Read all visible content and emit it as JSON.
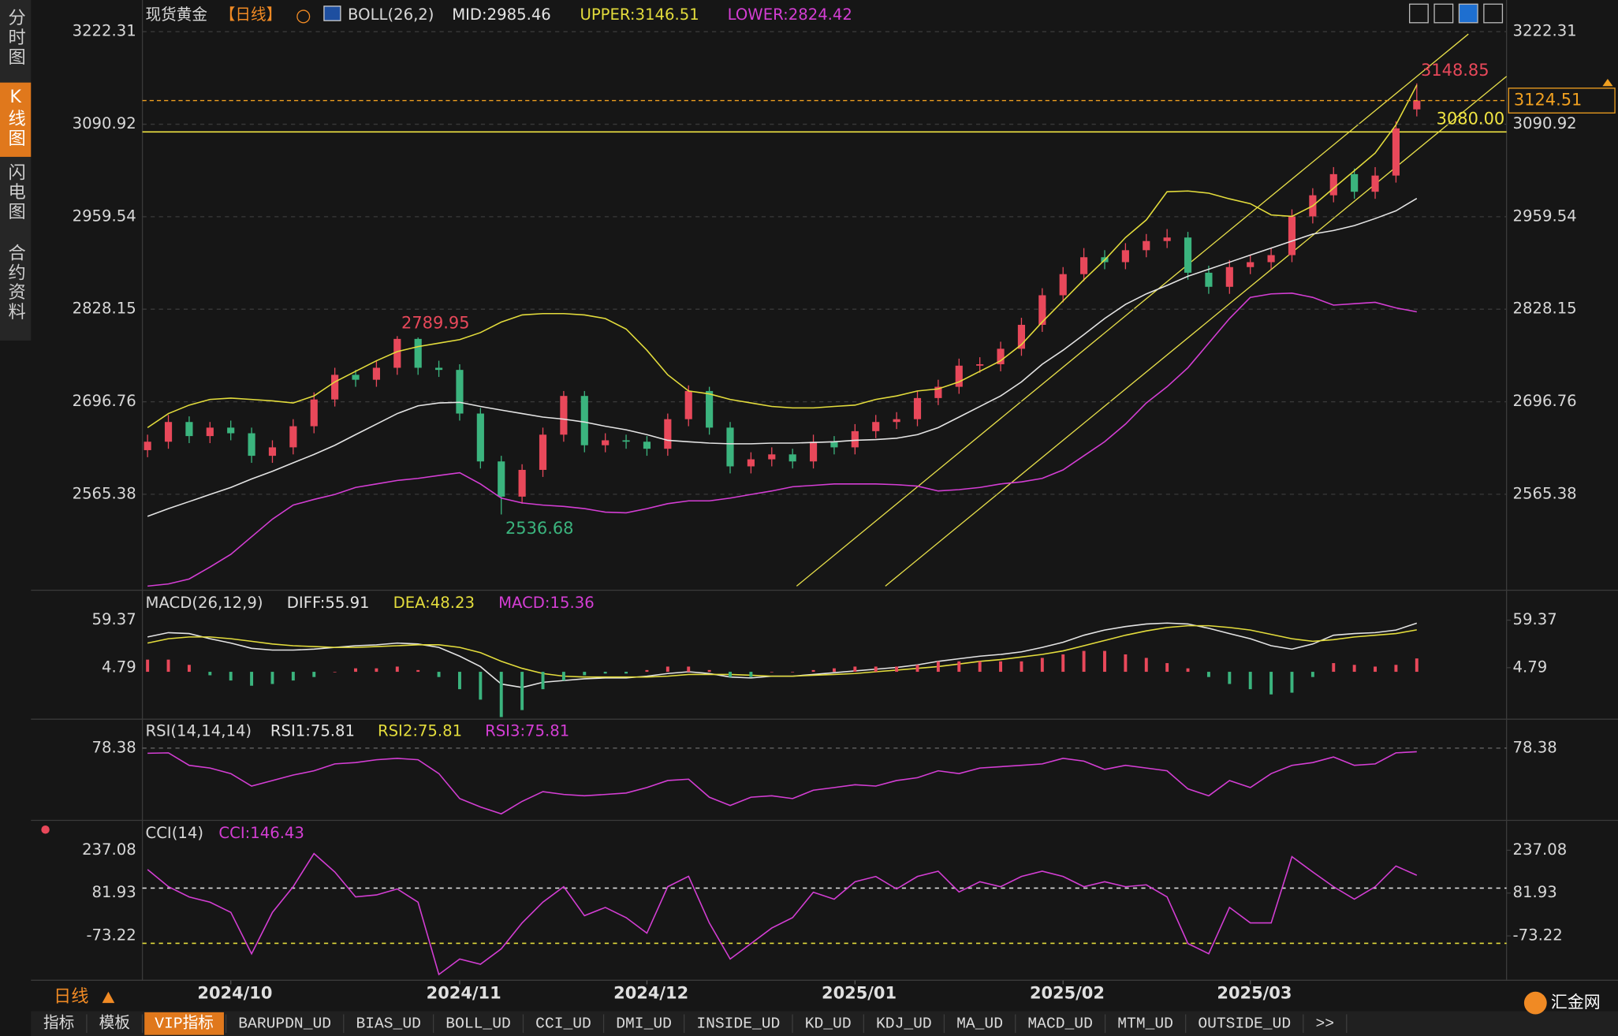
{
  "sidebar": {
    "tabs": [
      "分时图",
      "K线图",
      "闪电图",
      "合约资料"
    ]
  },
  "toolbar": {
    "period": "日线",
    "tabs": [
      "指标",
      "模板",
      "VIP指标",
      "BARUPDN_UD",
      "BIAS_UD",
      "BOLL_UD",
      "CCI_UD",
      "DMI_UD",
      "INSIDE_UD",
      "KD_UD",
      "KDJ_UD",
      "MA_UD",
      "MACD_UD",
      "MTM_UD",
      "OUTSIDE_UD",
      ">>"
    ]
  },
  "logo": "汇金网",
  "chart_data": [
    {
      "type": "candlestick",
      "title": "现货黄金",
      "period": "【日线】",
      "indicator": "BOLL(26,2)",
      "categories": [
        null,
        null,
        null,
        null,
        null,
        null,
        null,
        null,
        null,
        null,
        null,
        null,
        null,
        null,
        null,
        null,
        null,
        null,
        null,
        null,
        null,
        null,
        null,
        null,
        null,
        null,
        null,
        null,
        null,
        null,
        null,
        null,
        null,
        null,
        null,
        null,
        null,
        null,
        null,
        null,
        null,
        null,
        null,
        null,
        null,
        null,
        null,
        null,
        null,
        null,
        null,
        null,
        null,
        null,
        null,
        null,
        null,
        null,
        null,
        null,
        null,
        null
      ],
      "xticks": [
        {
          "value": 4,
          "label": "2024/10"
        },
        {
          "value": 15,
          "label": "2024/11"
        },
        {
          "value": 24,
          "label": "2024/12"
        },
        {
          "value": 34,
          "label": "2025/01"
        },
        {
          "value": 44,
          "label": "2025/02"
        },
        {
          "value": 53,
          "label": "2025/03"
        }
      ],
      "open": [
        2628,
        2640,
        2668,
        2648,
        2660,
        2652,
        2620,
        2632,
        2662,
        2700,
        2735,
        2728,
        2745,
        2786,
        2745,
        2742,
        2680,
        2612,
        2562,
        2600,
        2650,
        2705,
        2635,
        2642,
        2640,
        2630,
        2672,
        2712,
        2660,
        2605,
        2615,
        2622,
        2612,
        2640,
        2632,
        2655,
        2668,
        2672,
        2702,
        2718,
        2748,
        2750,
        2772,
        2806,
        2848,
        2878,
        2902,
        2895,
        2912,
        2925,
        2930,
        2880,
        2860,
        2888,
        2895,
        2905,
        2960,
        2990,
        3020,
        2995,
        3018,
        3112
      ],
      "high": [
        2650,
        2678,
        2676,
        2668,
        2670,
        2660,
        2642,
        2672,
        2710,
        2745,
        2742,
        2755,
        2789.95,
        2788,
        2755,
        2750,
        2688,
        2620,
        2608,
        2660,
        2712,
        2712,
        2652,
        2650,
        2648,
        2680,
        2720,
        2718,
        2668,
        2625,
        2632,
        2630,
        2650,
        2648,
        2665,
        2678,
        2682,
        2712,
        2728,
        2758,
        2760,
        2782,
        2816,
        2858,
        2888,
        2915,
        2912,
        2922,
        2935,
        2942,
        2938,
        2890,
        2898,
        2905,
        2915,
        2970,
        3000,
        3030,
        3028,
        3030,
        3095,
        3148.85
      ],
      "low": [
        2618,
        2630,
        2638,
        2638,
        2642,
        2610,
        2610,
        2622,
        2652,
        2690,
        2718,
        2718,
        2735,
        2735,
        2732,
        2670,
        2602,
        2536.68,
        2552,
        2590,
        2640,
        2625,
        2625,
        2630,
        2620,
        2620,
        2662,
        2650,
        2595,
        2595,
        2605,
        2602,
        2602,
        2622,
        2622,
        2645,
        2658,
        2662,
        2692,
        2708,
        2738,
        2740,
        2762,
        2796,
        2838,
        2868,
        2885,
        2885,
        2902,
        2915,
        2870,
        2850,
        2850,
        2878,
        2885,
        2895,
        2950,
        2980,
        2985,
        2985,
        3008,
        3102
      ],
      "close": [
        2640,
        2668,
        2648,
        2660,
        2652,
        2620,
        2632,
        2662,
        2700,
        2735,
        2728,
        2745,
        2786,
        2745,
        2742,
        2680,
        2612,
        2562,
        2600,
        2650,
        2705,
        2635,
        2642,
        2640,
        2630,
        2672,
        2712,
        2660,
        2605,
        2615,
        2622,
        2612,
        2640,
        2632,
        2655,
        2668,
        2672,
        2702,
        2718,
        2748,
        2750,
        2772,
        2806,
        2848,
        2878,
        2902,
        2895,
        2912,
        2925,
        2930,
        2880,
        2860,
        2888,
        2895,
        2905,
        2960,
        2990,
        3020,
        2995,
        3018,
        3085,
        3124.51
      ],
      "up_color": "#e8485a",
      "down_color": "#3bb47e",
      "last_price_color": "#f0a020",
      "series": [
        {
          "name": "MID:2985.46",
          "color": "#e4e4e4",
          "values": [
            2534,
            2545,
            2555,
            2565,
            2575,
            2587,
            2598,
            2610,
            2622,
            2635,
            2650,
            2665,
            2680,
            2691,
            2695,
            2696,
            2690,
            2685,
            2680,
            2675,
            2672,
            2668,
            2662,
            2657,
            2650,
            2642,
            2640,
            2638,
            2637,
            2637,
            2638,
            2638,
            2639,
            2640,
            2642,
            2643,
            2645,
            2650,
            2660,
            2675,
            2690,
            2705,
            2725,
            2750,
            2770,
            2792,
            2815,
            2835,
            2850,
            2862,
            2875,
            2885,
            2895,
            2905,
            2915,
            2925,
            2935,
            2940,
            2947,
            2957,
            2968,
            2985.46
          ]
        },
        {
          "name": "UPPER:3146.51",
          "color": "#e3dc3c",
          "values": [
            2660,
            2680,
            2692,
            2700,
            2702,
            2700,
            2698,
            2695,
            2705,
            2725,
            2740,
            2755,
            2768,
            2775,
            2780,
            2785,
            2795,
            2810,
            2820,
            2822,
            2822,
            2820,
            2815,
            2800,
            2770,
            2735,
            2712,
            2708,
            2700,
            2695,
            2690,
            2688,
            2688,
            2690,
            2692,
            2700,
            2705,
            2712,
            2715,
            2725,
            2740,
            2755,
            2778,
            2810,
            2840,
            2870,
            2898,
            2930,
            2955,
            2995,
            2996,
            2993,
            2985,
            2978,
            2962,
            2960,
            2975,
            3000,
            3025,
            3050,
            3090,
            3146.51
          ]
        },
        {
          "name": "LOWER:2824.42",
          "color": "#d43ed4",
          "values": [
            2435,
            2438,
            2445,
            2462,
            2480,
            2505,
            2530,
            2550,
            2558,
            2565,
            2575,
            2580,
            2585,
            2588,
            2592,
            2596,
            2580,
            2560,
            2553,
            2550,
            2548,
            2545,
            2540,
            2539,
            2545,
            2552,
            2556,
            2556,
            2560,
            2565,
            2570,
            2576,
            2578,
            2580,
            2580,
            2580,
            2579,
            2577,
            2570,
            2572,
            2575,
            2580,
            2583,
            2588,
            2600,
            2620,
            2640,
            2665,
            2695,
            2718,
            2745,
            2780,
            2815,
            2845,
            2850,
            2851,
            2845,
            2834,
            2836,
            2838,
            2830,
            2824.42
          ]
        }
      ],
      "hlines": [
        {
          "value": 3080,
          "label": "3080.00",
          "color": "#f0e442",
          "dash": false
        }
      ],
      "ylim": [
        2432,
        3260
      ],
      "yticks": [
        3222.31,
        3090.92,
        2959.54,
        2828.15,
        2696.76,
        2565.38
      ],
      "grid": true,
      "grid_color": "#3a3a3a"
    },
    {
      "type": "macd",
      "title": "MACD(26,12,9)",
      "series": [
        {
          "name": "DIFF:55.91",
          "color": "#e4e4e4",
          "values": [
            40,
            45,
            44,
            38,
            33,
            27,
            25,
            25,
            26,
            28,
            30,
            31,
            33,
            32,
            28,
            18,
            6,
            -14,
            -18,
            -12,
            -10,
            -8,
            -7,
            -7,
            -5,
            -2,
            0,
            -2,
            -6,
            -7,
            -5,
            -5,
            -3,
            -1,
            1,
            3,
            5,
            8,
            12,
            15,
            18,
            20,
            23,
            28,
            34,
            42,
            48,
            52,
            55,
            56,
            55,
            50,
            44,
            38,
            30,
            26,
            32,
            42,
            44,
            45,
            48,
            55.91
          ]
        },
        {
          "name": "DEA:48.23",
          "color": "#e3dc3c",
          "values": [
            33,
            38,
            40,
            40,
            38,
            35,
            32,
            30,
            29,
            28,
            28,
            29,
            30,
            31,
            31,
            28,
            22,
            12,
            4,
            -2,
            -5,
            -6,
            -6,
            -6,
            -6,
            -5,
            -3,
            -3,
            -3,
            -4,
            -5,
            -5,
            -4,
            -3,
            -2,
            0,
            2,
            4,
            6,
            9,
            12,
            14,
            17,
            20,
            24,
            30,
            36,
            42,
            47,
            51,
            53,
            53,
            51,
            48,
            43,
            38,
            35,
            37,
            40,
            42,
            44,
            48.23
          ]
        },
        {
          "name": "MACD:15.36",
          "color": "#d43ed4",
          "style": "bar",
          "bar_colors": [
            "#e8485a",
            "#3bb47e"
          ],
          "values": [
            14,
            14,
            8,
            -4,
            -10,
            -16,
            -14,
            -10,
            -6,
            0,
            4,
            4,
            6,
            2,
            -6,
            -20,
            -32,
            -52,
            -44,
            -20,
            -10,
            -4,
            -2,
            -2,
            2,
            6,
            6,
            2,
            -6,
            -6,
            0,
            0,
            2,
            4,
            6,
            6,
            6,
            8,
            12,
            12,
            12,
            12,
            12,
            16,
            20,
            24,
            24,
            20,
            16,
            10,
            4,
            -6,
            -14,
            -20,
            -26,
            -24,
            -6,
            10,
            8,
            6,
            8,
            15.36
          ]
        }
      ],
      "ylim": [
        -54.5,
        90.2
      ],
      "yticks": [
        59.37,
        4.79
      ],
      "grid": false,
      "grid_color": "#3a3a3a"
    },
    {
      "type": "line",
      "title": "RSI(14,14,14)",
      "series": [
        {
          "name": "RSI1:75.81",
          "color": "#e4e4e4"
        },
        {
          "name": "RSI2:75.81",
          "color": "#e3dc3c"
        },
        {
          "name": "RSI3:75.81",
          "color": "#d43ed4",
          "values": [
            74.7,
            75,
            66,
            64,
            60,
            51,
            55,
            59,
            62,
            67,
            68,
            70,
            71,
            70,
            60,
            42,
            36,
            31,
            40,
            47,
            45,
            44,
            45,
            46,
            50,
            55,
            56,
            43,
            37,
            43,
            44,
            42,
            48,
            50,
            52,
            51,
            55,
            57,
            62,
            60,
            64,
            65,
            66,
            67,
            71,
            69,
            63,
            66,
            64,
            62,
            49,
            44,
            55,
            50,
            60,
            66,
            68,
            72,
            66,
            67,
            75,
            75.81
          ]
        }
      ],
      "ylim": [
        26.3,
        97
      ],
      "yticks": [
        78.38
      ],
      "grid": true,
      "grid_color": "#6a6a6a"
    },
    {
      "type": "line",
      "title": "CCI(14)",
      "series": [
        {
          "name": "CCI:146.43",
          "color": "#d43ed4",
          "values": [
            167,
            105,
            68,
            49,
            12,
            -138,
            12,
            105,
            225,
            158,
            68,
            75,
            97,
            49,
            -213,
            -157,
            -176,
            -120,
            -26,
            49,
            105,
            0,
            30,
            -7,
            -63,
            105,
            143,
            -26,
            -157,
            -101,
            -45,
            -7,
            85,
            60,
            123,
            142,
            97,
            142,
            161,
            86,
            123,
            105,
            142,
            161,
            142,
            105,
            123,
            105,
            112,
            68,
            -101,
            -138,
            30,
            -26,
            -26,
            214,
            158,
            105,
            60,
            105,
            180,
            146.43
          ]
        }
      ],
      "hlines": [
        {
          "value": 100,
          "color": "#dddddd",
          "dash": true
        },
        {
          "value": -100,
          "color": "#e3dc3c",
          "dash": true
        }
      ],
      "ylim": [
        -234,
        338
      ],
      "yticks": [
        237.08,
        81.93,
        -73.22
      ],
      "grid": false,
      "grid_color": "#3a3a3a"
    }
  ]
}
